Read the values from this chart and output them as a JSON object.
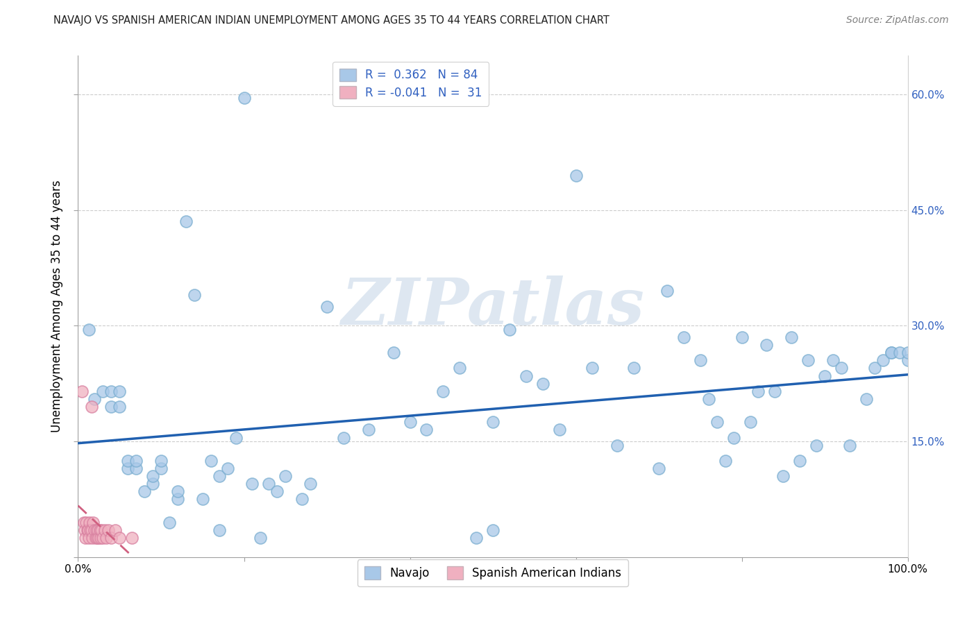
{
  "title": "NAVAJO VS SPANISH AMERICAN INDIAN UNEMPLOYMENT AMONG AGES 35 TO 44 YEARS CORRELATION CHART",
  "source": "Source: ZipAtlas.com",
  "ylabel": "Unemployment Among Ages 35 to 44 years",
  "xlim": [
    0,
    1.0
  ],
  "ylim": [
    0,
    0.65
  ],
  "xticks": [
    0.0,
    0.2,
    0.4,
    0.6,
    0.8,
    1.0
  ],
  "xticklabels": [
    "0.0%",
    "",
    "",
    "",
    "",
    "100.0%"
  ],
  "yticks": [
    0.0,
    0.15,
    0.3,
    0.45,
    0.6
  ],
  "ylabels_left": [
    "",
    "",
    "",
    "",
    ""
  ],
  "ylabels_right": [
    "",
    "15.0%",
    "30.0%",
    "45.0%",
    "60.0%"
  ],
  "navajo_R": 0.362,
  "navajo_N": 84,
  "spanish_R": -0.041,
  "spanish_N": 31,
  "navajo_color": "#a8c8e8",
  "navajo_edge_color": "#7aaed0",
  "navajo_line_color": "#2060b0",
  "spanish_color": "#f0b0c0",
  "spanish_edge_color": "#d880a0",
  "spanish_line_color": "#d06080",
  "watermark_text": "ZIPatlas",
  "watermark_color": "#c8d8e8",
  "legend_navajo": "Navajo",
  "legend_spanish": "Spanish American Indians",
  "title_color": "#202020",
  "source_color": "#808080",
  "grid_color": "#cccccc",
  "right_tick_color": "#3060c0",
  "navajo_x": [
    0.013,
    0.02,
    0.03,
    0.04,
    0.04,
    0.05,
    0.05,
    0.06,
    0.06,
    0.07,
    0.07,
    0.08,
    0.09,
    0.09,
    0.1,
    0.1,
    0.11,
    0.12,
    0.12,
    0.13,
    0.14,
    0.15,
    0.16,
    0.17,
    0.17,
    0.18,
    0.19,
    0.2,
    0.21,
    0.22,
    0.23,
    0.24,
    0.25,
    0.27,
    0.28,
    0.3,
    0.32,
    0.35,
    0.38,
    0.4,
    0.42,
    0.44,
    0.46,
    0.48,
    0.5,
    0.5,
    0.52,
    0.54,
    0.56,
    0.58,
    0.6,
    0.62,
    0.65,
    0.67,
    0.7,
    0.71,
    0.73,
    0.75,
    0.76,
    0.77,
    0.78,
    0.79,
    0.8,
    0.81,
    0.82,
    0.83,
    0.84,
    0.85,
    0.86,
    0.87,
    0.88,
    0.89,
    0.9,
    0.91,
    0.92,
    0.93,
    0.95,
    0.96,
    0.97,
    0.98,
    0.98,
    0.99,
    1.0,
    1.0
  ],
  "navajo_y": [
    0.295,
    0.205,
    0.215,
    0.195,
    0.215,
    0.195,
    0.215,
    0.115,
    0.125,
    0.115,
    0.125,
    0.085,
    0.095,
    0.105,
    0.115,
    0.125,
    0.045,
    0.075,
    0.085,
    0.435,
    0.34,
    0.075,
    0.125,
    0.035,
    0.105,
    0.115,
    0.155,
    0.595,
    0.095,
    0.025,
    0.095,
    0.085,
    0.105,
    0.075,
    0.095,
    0.325,
    0.155,
    0.165,
    0.265,
    0.175,
    0.165,
    0.215,
    0.245,
    0.025,
    0.175,
    0.035,
    0.295,
    0.235,
    0.225,
    0.165,
    0.495,
    0.245,
    0.145,
    0.245,
    0.115,
    0.345,
    0.285,
    0.255,
    0.205,
    0.175,
    0.125,
    0.155,
    0.285,
    0.175,
    0.215,
    0.275,
    0.215,
    0.105,
    0.285,
    0.125,
    0.255,
    0.145,
    0.235,
    0.255,
    0.245,
    0.145,
    0.205,
    0.245,
    0.255,
    0.265,
    0.265,
    0.265,
    0.255,
    0.265
  ],
  "spanish_x": [
    0.005,
    0.007,
    0.008,
    0.009,
    0.01,
    0.011,
    0.012,
    0.013,
    0.014,
    0.015,
    0.016,
    0.017,
    0.018,
    0.02,
    0.021,
    0.022,
    0.023,
    0.024,
    0.025,
    0.026,
    0.027,
    0.028,
    0.03,
    0.032,
    0.034,
    0.036,
    0.04,
    0.045,
    0.05,
    0.065,
    0.016
  ],
  "spanish_y": [
    0.215,
    0.045,
    0.035,
    0.025,
    0.045,
    0.035,
    0.035,
    0.025,
    0.045,
    0.035,
    0.035,
    0.025,
    0.045,
    0.035,
    0.025,
    0.035,
    0.025,
    0.035,
    0.025,
    0.035,
    0.025,
    0.035,
    0.025,
    0.035,
    0.025,
    0.035,
    0.025,
    0.035,
    0.025,
    0.025,
    0.195
  ]
}
